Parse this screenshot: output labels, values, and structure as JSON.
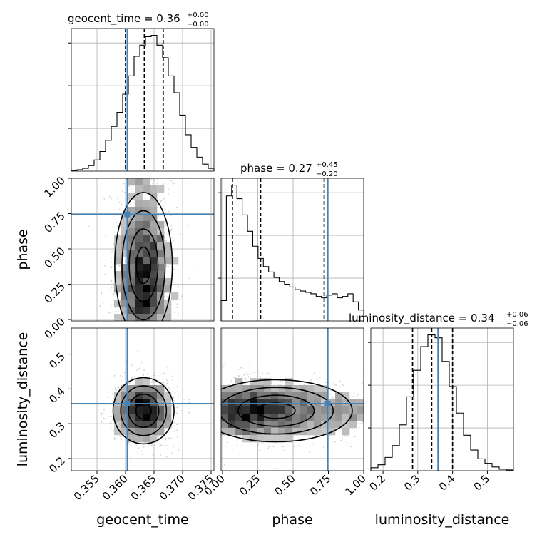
{
  "chart_data": {
    "type": "corner",
    "colors": {
      "truth": "#4682b4",
      "hist": "#000000",
      "grid": "#b0b0b0",
      "scatter": "#9a9a9a"
    },
    "parameters": [
      {
        "name": "geocent_time",
        "range": [
          0.3505,
          0.3755
        ],
        "truth": 0.3603,
        "quantiles": [
          0.36,
          0.3633,
          0.3666
        ],
        "ticks": [
          0.355,
          0.36,
          0.365,
          0.37,
          0.375
        ],
        "tick_labels": [
          "0.355",
          "0.360",
          "0.365",
          "0.370",
          "0.375"
        ]
      },
      {
        "name": "phase",
        "range": [
          -0.01,
          1.0
        ],
        "truth": 0.745,
        "quantiles": [
          0.07,
          0.27,
          0.72
        ],
        "ticks": [
          0.0,
          0.25,
          0.5,
          0.75,
          1.0
        ],
        "tick_labels": [
          "0.00",
          "0.25",
          "0.50",
          "0.75",
          "1.00"
        ]
      },
      {
        "name": "luminosity_distance",
        "range": [
          0.165,
          0.575
        ],
        "truth": 0.358,
        "quantiles": [
          0.285,
          0.34,
          0.4
        ],
        "ticks": [
          0.2,
          0.3,
          0.4,
          0.5
        ],
        "tick_labels": [
          "0.2",
          "0.3",
          "0.4",
          "0.5"
        ],
        "ticks_y": [
          0.2,
          0.3,
          0.4,
          0.5
        ],
        "tick_labels_y": [
          "0.2",
          "0.3",
          "0.4",
          "0.5"
        ]
      }
    ],
    "titles": [
      {
        "param": "geocent_time",
        "text": "geocent_time = 0.36",
        "plus": "+0.00",
        "minus": "−0.00"
      },
      {
        "param": "phase",
        "text": "phase = 0.27",
        "plus": "+0.45",
        "minus": "−0.20"
      },
      {
        "param": "luminosity_distance",
        "text": "luminosity_distance = 0.34",
        "plus": "+0.06",
        "minus": "−0.06"
      }
    ],
    "histograms": {
      "geocent_time": [
        0.5,
        1,
        2,
        4,
        8,
        14,
        22,
        32,
        42,
        55,
        68,
        82,
        90,
        96,
        97,
        90,
        81,
        68,
        56,
        40,
        26,
        17,
        10,
        5,
        2
      ],
      "phase": [
        15,
        92,
        100,
        90,
        78,
        66,
        55,
        46,
        40,
        36,
        32,
        29,
        27,
        25,
        23,
        22,
        21,
        20,
        18,
        17,
        19,
        20,
        17,
        18,
        20,
        14,
        8
      ],
      "luminosity_distance": [
        2,
        4,
        9,
        17,
        31,
        50,
        68,
        84,
        92,
        90,
        74,
        57,
        39,
        24,
        14,
        8,
        5,
        2.5,
        1,
        0.5
      ]
    },
    "joint": [
      {
        "x": "geocent_time",
        "y": "phase",
        "mean": [
          0.3632,
          0.32
        ],
        "sd": [
          0.0023,
          0.24
        ],
        "clip": [
          0.0,
          1.0
        ]
      },
      {
        "x": "geocent_time",
        "y": "luminosity_distance",
        "mean": [
          0.3632,
          0.338
        ],
        "sd": [
          0.0025,
          0.045
        ],
        "clip": null
      },
      {
        "x": "phase",
        "y": "luminosity_distance",
        "mean": [
          0.27,
          0.338
        ],
        "sd": [
          0.26,
          0.042
        ],
        "clip": [
          0.0,
          1.0
        ]
      }
    ]
  }
}
